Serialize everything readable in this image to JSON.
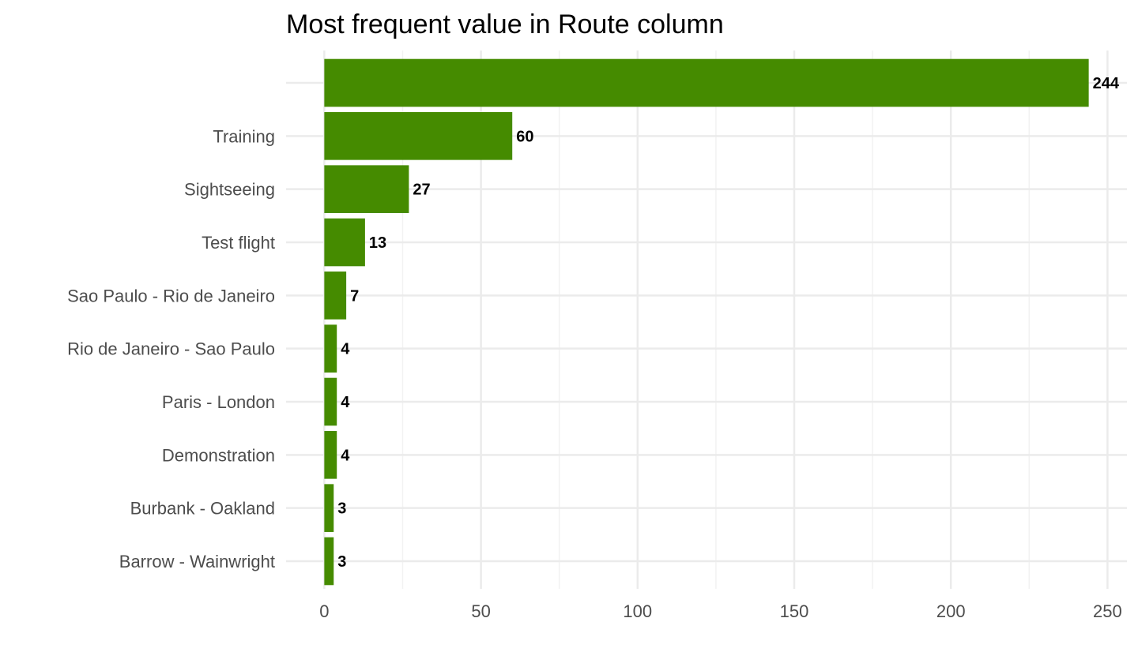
{
  "chart_data": {
    "type": "bar",
    "orientation": "horizontal",
    "title": "Most frequent value in Route column",
    "xlabel": "",
    "ylabel": "",
    "categories": [
      "",
      "Training",
      "Sightseeing",
      "Test flight",
      "Sao Paulo - Rio de Janeiro",
      "Rio de Janeiro - Sao Paulo",
      "Paris - London",
      "Demonstration",
      "Burbank - Oakland",
      "Barrow - Wainwright"
    ],
    "values": [
      244,
      60,
      27,
      13,
      7,
      4,
      4,
      4,
      3,
      3
    ],
    "value_labels": [
      "244",
      "60",
      "27",
      "13",
      "7",
      "4",
      "4",
      "4",
      "3",
      "3"
    ],
    "x_ticks": [
      0,
      50,
      100,
      150,
      200,
      250
    ],
    "x_tick_labels": [
      "0",
      "50",
      "100",
      "150",
      "200",
      "250"
    ],
    "xlim": [
      -12.2,
      256.2
    ],
    "grid": true,
    "legend": "none",
    "colors": {
      "bar": "#458B00",
      "grid_major": "#EBEBEB",
      "grid_minor": "#F2F2F2",
      "tick_text": "#4D4D4D",
      "label_text": "#000000"
    }
  }
}
